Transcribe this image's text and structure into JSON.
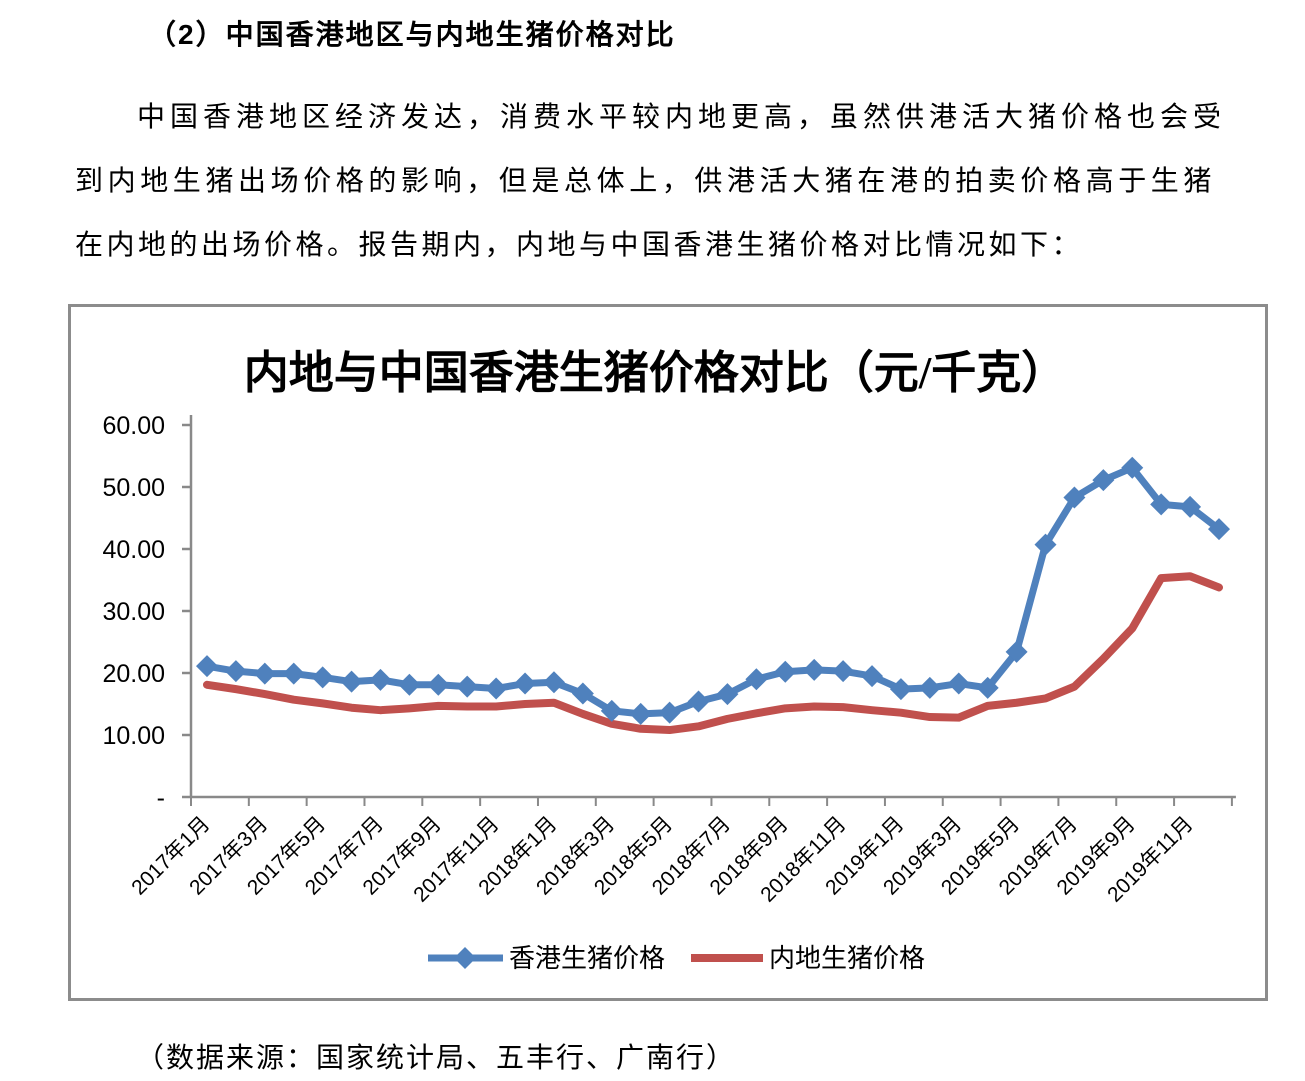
{
  "page": {
    "heading": "（2）中国香港地区与内地生猪价格对比",
    "paragraph_lines": [
      "中国香港地区经济发达，消费水平较内地更高，虽然供港活大猪价格也会受",
      "到内地生猪出场价格的影响，但是总体上，供港活大猪在港的拍卖价格高于生猪",
      "在内地的出场价格。报告期内，内地与中国香港生猪价格对比情况如下："
    ],
    "source_note": "（数据来源：国家统计局、五丰行、广南行）"
  },
  "chart_data": {
    "type": "line",
    "title": "内地与中国香港生猪价格对比（元/千克）",
    "unit": "元/千克",
    "ylim": [
      0,
      60
    ],
    "y_tick_labels": [
      "60.00",
      "50.00",
      "40.00",
      "30.00",
      "20.00",
      "10.00",
      "-"
    ],
    "x_tick_labels": [
      "2017年1月",
      "2017年3月",
      "2017年5月",
      "2017年7月",
      "2017年9月",
      "2017年11月",
      "2018年1月",
      "2018年3月",
      "2018年5月",
      "2018年7月",
      "2018年9月",
      "2018年11月",
      "2019年1月",
      "2019年3月",
      "2019年5月",
      "2019年7月",
      "2019年9月",
      "2019年11月"
    ],
    "months_span": "2017年1月–2019年12月（每月一个数据点，共36个）",
    "grid": false,
    "legend_position": "bottom",
    "axis_color": "#898989",
    "series": [
      {
        "name": "香港生猪价格",
        "color": "#4F81BD",
        "marker": "diamond",
        "values": [
          21.1,
          20.3,
          19.9,
          19.9,
          19.3,
          18.6,
          18.9,
          18.1,
          18.1,
          17.8,
          17.5,
          18.3,
          18.5,
          16.7,
          13.9,
          13.4,
          13.6,
          15.4,
          16.6,
          19.0,
          20.2,
          20.5,
          20.3,
          19.5,
          17.4,
          17.6,
          18.3,
          17.6,
          23.4,
          40.7,
          48.3,
          51.1,
          53.1,
          47.2,
          46.8,
          43.2
        ]
      },
      {
        "name": "内地生猪价格",
        "color": "#C0504D",
        "marker": "none",
        "values": [
          18.1,
          17.4,
          16.6,
          15.7,
          15.1,
          14.4,
          14.0,
          14.3,
          14.7,
          14.6,
          14.6,
          15.0,
          15.2,
          13.4,
          11.8,
          11.0,
          10.8,
          11.4,
          12.6,
          13.5,
          14.3,
          14.6,
          14.5,
          14.0,
          13.6,
          12.9,
          12.8,
          14.7,
          15.2,
          15.9,
          17.8,
          22.3,
          27.2,
          35.3,
          35.6,
          33.8
        ]
      }
    ]
  }
}
